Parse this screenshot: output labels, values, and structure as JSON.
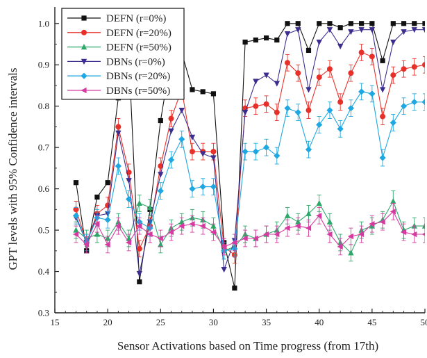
{
  "chart_data": {
    "type": "line",
    "xlabel": "Sensor Activations based on Time progress (from 17th)",
    "ylabel": "GPT levels with 95% Confidence intervals",
    "xlim": [
      15,
      50
    ],
    "ylim": [
      0.3,
      1.04
    ],
    "xticks": [
      15,
      20,
      25,
      30,
      35,
      40,
      45,
      50
    ],
    "yticks": [
      0.3,
      0.4,
      0.5,
      0.6,
      0.7,
      0.8,
      0.9,
      1.0
    ],
    "ytick_labels": [
      "0.3",
      "0.4",
      "0.5",
      "0.6",
      "0.7",
      "0.8",
      "0.9",
      "1.0"
    ],
    "legend_position": "top-left",
    "grid": false,
    "x": [
      17,
      18,
      19,
      20,
      21,
      22,
      23,
      24,
      25,
      26,
      27,
      28,
      29,
      30,
      31,
      32,
      33,
      34,
      35,
      36,
      37,
      38,
      39,
      40,
      41,
      42,
      43,
      44,
      45,
      46,
      47,
      48,
      49,
      50
    ],
    "series": [
      {
        "name": "DEFN (r=0%)",
        "color": "#111111",
        "marker": "square",
        "values": [
          0.615,
          0.45,
          0.58,
          0.615,
          0.82,
          0.92,
          0.375,
          0.55,
          0.765,
          0.92,
          0.93,
          0.84,
          0.835,
          0.83,
          0.47,
          0.36,
          0.955,
          0.96,
          0.965,
          0.96,
          1.0,
          1.0,
          0.935,
          1.0,
          1.0,
          0.99,
          1.0,
          1.0,
          1.0,
          0.91,
          1.0,
          1.0,
          1.0,
          1.0
        ],
        "errors": [
          0,
          0,
          0,
          0,
          0,
          0,
          0,
          0,
          0,
          0,
          0,
          0,
          0,
          0,
          0,
          0,
          0,
          0,
          0,
          0,
          0,
          0,
          0,
          0,
          0,
          0,
          0,
          0,
          0,
          0,
          0,
          0,
          0,
          0
        ]
      },
      {
        "name": "DEFN (r=20%)",
        "color": "#e8302a",
        "marker": "circle",
        "values": [
          0.55,
          0.47,
          0.54,
          0.56,
          0.75,
          0.64,
          0.455,
          0.51,
          0.655,
          0.77,
          0.84,
          0.69,
          0.69,
          0.69,
          0.46,
          0.44,
          0.795,
          0.8,
          0.805,
          0.785,
          0.905,
          0.88,
          0.79,
          0.87,
          0.89,
          0.81,
          0.88,
          0.93,
          0.92,
          0.775,
          0.875,
          0.89,
          0.895,
          0.9
        ],
        "errors": [
          0.02,
          0.02,
          0.02,
          0.02,
          0.02,
          0.02,
          0.02,
          0.02,
          0.02,
          0.02,
          0.02,
          0.02,
          0.02,
          0.02,
          0.02,
          0.02,
          0.02,
          0.02,
          0.02,
          0.02,
          0.02,
          0.02,
          0.02,
          0.02,
          0.02,
          0.02,
          0.02,
          0.02,
          0.02,
          0.02,
          0.02,
          0.02,
          0.02,
          0.02
        ]
      },
      {
        "name": "DEFN (r=50%)",
        "color": "#2ea86a",
        "marker": "triangle-up",
        "values": [
          0.5,
          0.48,
          0.49,
          0.48,
          0.52,
          0.48,
          0.565,
          0.555,
          0.465,
          0.505,
          0.52,
          0.53,
          0.525,
          0.51,
          0.45,
          0.46,
          0.49,
          0.48,
          0.49,
          0.5,
          0.535,
          0.52,
          0.54,
          0.565,
          0.52,
          0.47,
          0.445,
          0.5,
          0.51,
          0.525,
          0.57,
          0.5,
          0.51,
          0.51
        ],
        "errors": [
          0.02,
          0.02,
          0.02,
          0.02,
          0.02,
          0.02,
          0.02,
          0.02,
          0.02,
          0.02,
          0.02,
          0.02,
          0.02,
          0.02,
          0.02,
          0.02,
          0.02,
          0.02,
          0.02,
          0.02,
          0.02,
          0.02,
          0.02,
          0.02,
          0.02,
          0.02,
          0.02,
          0.02,
          0.02,
          0.02,
          0.025,
          0.02,
          0.02,
          0.02
        ]
      },
      {
        "name": "DBNs (r=0%)",
        "color": "#3b2e8f",
        "marker": "triangle-down",
        "values": [
          0.53,
          0.47,
          0.535,
          0.54,
          0.735,
          0.62,
          0.395,
          0.52,
          0.635,
          0.74,
          0.79,
          0.725,
          0.685,
          0.675,
          0.405,
          0.475,
          0.785,
          0.86,
          0.875,
          0.855,
          0.975,
          0.985,
          0.84,
          0.955,
          0.985,
          0.945,
          0.98,
          0.985,
          0.985,
          0.84,
          0.955,
          0.98,
          0.985,
          0.985
        ],
        "errors": [
          0,
          0,
          0,
          0,
          0,
          0,
          0,
          0,
          0,
          0,
          0,
          0,
          0,
          0,
          0,
          0,
          0,
          0,
          0,
          0,
          0,
          0,
          0,
          0,
          0,
          0,
          0,
          0,
          0,
          0,
          0,
          0,
          0,
          0
        ]
      },
      {
        "name": "DBNs (r=20%)",
        "color": "#1ea7e0",
        "marker": "diamond",
        "values": [
          0.535,
          0.47,
          0.53,
          0.525,
          0.655,
          0.575,
          0.52,
          0.505,
          0.595,
          0.67,
          0.72,
          0.6,
          0.605,
          0.605,
          0.45,
          0.455,
          0.69,
          0.69,
          0.7,
          0.68,
          0.795,
          0.785,
          0.695,
          0.755,
          0.79,
          0.745,
          0.795,
          0.835,
          0.83,
          0.675,
          0.76,
          0.8,
          0.81,
          0.81
        ],
        "errors": [
          0.02,
          0.02,
          0.02,
          0.02,
          0.02,
          0.02,
          0.02,
          0.02,
          0.02,
          0.02,
          0.02,
          0.02,
          0.02,
          0.02,
          0.02,
          0.02,
          0.02,
          0.02,
          0.02,
          0.02,
          0.02,
          0.02,
          0.02,
          0.02,
          0.02,
          0.02,
          0.02,
          0.02,
          0.02,
          0.02,
          0.02,
          0.02,
          0.02,
          0.02
        ]
      },
      {
        "name": "DBNs (r=50%)",
        "color": "#d63aa0",
        "marker": "triangle-left",
        "values": [
          0.49,
          0.465,
          0.515,
          0.465,
          0.51,
          0.47,
          0.51,
          0.49,
          0.48,
          0.495,
          0.51,
          0.515,
          0.51,
          0.495,
          0.46,
          0.47,
          0.48,
          0.48,
          0.49,
          0.49,
          0.505,
          0.51,
          0.505,
          0.535,
          0.49,
          0.46,
          0.485,
          0.49,
          0.515,
          0.52,
          0.545,
          0.495,
          0.49,
          0.49
        ],
        "errors": [
          0.02,
          0.02,
          0.02,
          0.02,
          0.02,
          0.02,
          0.02,
          0.02,
          0.02,
          0.02,
          0.02,
          0.02,
          0.02,
          0.02,
          0.02,
          0.02,
          0.02,
          0.02,
          0.02,
          0.02,
          0.02,
          0.02,
          0.02,
          0.02,
          0.02,
          0.02,
          0.02,
          0.02,
          0.02,
          0.02,
          0.02,
          0.02,
          0.02,
          0.02
        ]
      }
    ]
  }
}
